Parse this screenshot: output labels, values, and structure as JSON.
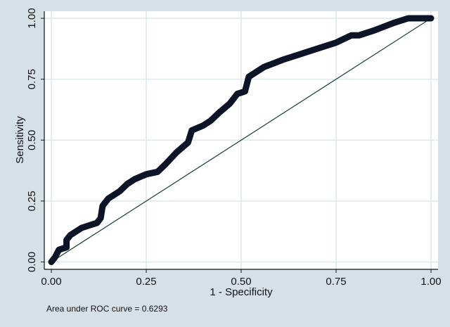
{
  "chart_data": {
    "type": "line",
    "title": "",
    "xlabel": "1 - Specificity",
    "ylabel": "Sensitivity",
    "xlim": [
      0,
      1
    ],
    "ylim": [
      0,
      1
    ],
    "xticks": [
      "0.00",
      "0.25",
      "0.50",
      "0.75",
      "1.00"
    ],
    "yticks": [
      "0.00",
      "0.25",
      "0.50",
      "0.75",
      "1.00"
    ],
    "xtick_values": [
      0,
      0.25,
      0.5,
      0.75,
      1
    ],
    "ytick_values": [
      0,
      0.25,
      0.5,
      0.75,
      1
    ],
    "grid": true,
    "note": "Area under ROC curve = 0.6293",
    "colors": {
      "roc": "#0d1428",
      "reference": "#1f4a35",
      "grid": "#dde7ec",
      "background": "#d5e1e7"
    },
    "series": [
      {
        "name": "ROC curve",
        "x": [
          0,
          0.01,
          0.02,
          0.04,
          0.04,
          0.05,
          0.08,
          0.1,
          0.12,
          0.13,
          0.135,
          0.15,
          0.18,
          0.2,
          0.22,
          0.25,
          0.28,
          0.3,
          0.33,
          0.36,
          0.37,
          0.4,
          0.42,
          0.44,
          0.47,
          0.49,
          0.51,
          0.515,
          0.52,
          0.56,
          0.61,
          0.65,
          0.69,
          0.75,
          0.79,
          0.81,
          0.85,
          0.9,
          0.94,
          0.97,
          1.0
        ],
        "y": [
          0,
          0.02,
          0.05,
          0.06,
          0.09,
          0.11,
          0.14,
          0.15,
          0.16,
          0.18,
          0.23,
          0.26,
          0.29,
          0.32,
          0.34,
          0.36,
          0.37,
          0.4,
          0.45,
          0.49,
          0.54,
          0.56,
          0.58,
          0.61,
          0.65,
          0.69,
          0.7,
          0.73,
          0.76,
          0.8,
          0.83,
          0.85,
          0.87,
          0.9,
          0.93,
          0.93,
          0.95,
          0.98,
          1.0,
          1.0,
          1.0
        ]
      },
      {
        "name": "Reference line",
        "x": [
          0,
          1
        ],
        "y": [
          0,
          1
        ]
      }
    ]
  }
}
